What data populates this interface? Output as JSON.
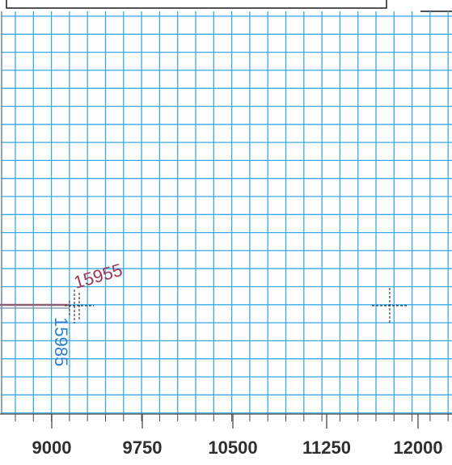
{
  "colors": {
    "grid": "#36a9e6",
    "frame": "#1a1a1a",
    "label_red": "#9b3a55",
    "label_blue": "#2f7fd0",
    "track_line": "#8b5f78",
    "text": "#2f2f2f"
  },
  "chart_data": {
    "type": "grid-plot",
    "x_ticks": [
      "9000",
      "9750",
      "10500",
      "11250",
      "12000"
    ],
    "annotations": [
      {
        "text": "15955",
        "color": "red"
      },
      {
        "text": "15985",
        "color": "blue"
      }
    ],
    "markers": [
      {
        "kind": "crosshair",
        "name": "crosshair-left"
      },
      {
        "kind": "crosshair",
        "name": "crosshair-right"
      }
    ]
  }
}
